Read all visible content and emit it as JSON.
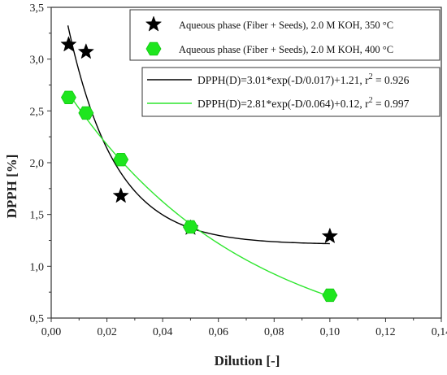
{
  "chart_data": {
    "type": "scatter",
    "xlabel": "Dilution [-]",
    "ylabel": "DPPH [%]",
    "xlim": [
      0.0,
      0.14
    ],
    "ylim": [
      0.5,
      3.5
    ],
    "x_ticks": [
      "0,00",
      "0,02",
      "0,04",
      "0,06",
      "0,08",
      "0,10",
      "0,12",
      "0,14"
    ],
    "y_ticks": [
      "0,5",
      "1,0",
      "1,5",
      "2,0",
      "2,5",
      "3,0",
      "3,5"
    ],
    "grid": false,
    "legend_position": "top-right",
    "series": [
      {
        "name": "Aqueous phase (Fiber + Seeds), 2.0 M KOH, 350 °C",
        "marker": "star",
        "color": "#000000",
        "points": [
          {
            "x": 0.00625,
            "y": 3.14
          },
          {
            "x": 0.0125,
            "y": 3.07
          },
          {
            "x": 0.025,
            "y": 1.68
          },
          {
            "x": 0.05,
            "y": 1.37
          },
          {
            "x": 0.1,
            "y": 1.29
          }
        ]
      },
      {
        "name": "Aqueous phase (Fiber + Seeds), 2.0 M KOH, 400 °C",
        "marker": "hexagon",
        "color": "#1ee61e",
        "points": [
          {
            "x": 0.00625,
            "y": 2.63
          },
          {
            "x": 0.0125,
            "y": 2.48
          },
          {
            "x": 0.025,
            "y": 2.03
          },
          {
            "x": 0.05,
            "y": 1.38
          },
          {
            "x": 0.1,
            "y": 0.72
          }
        ]
      }
    ],
    "fits": [
      {
        "label_main": "DPPH(D)=3.01*exp(-D/0.017)+1.21, r",
        "label_sup": "2",
        "label_tail": " = 0.926",
        "a": 3.01,
        "b": 0.017,
        "c": 1.21,
        "x_range": [
          0.006,
          0.1
        ],
        "color": "#000000"
      },
      {
        "label_main": "DPPH(D)=2.81*exp(-D/0.064)+0.12, r",
        "label_sup": "2",
        "label_tail": " = 0.997",
        "a": 2.81,
        "b": 0.064,
        "c": 0.12,
        "x_range": [
          0.006,
          0.1
        ],
        "color": "#2ee62e"
      }
    ]
  }
}
